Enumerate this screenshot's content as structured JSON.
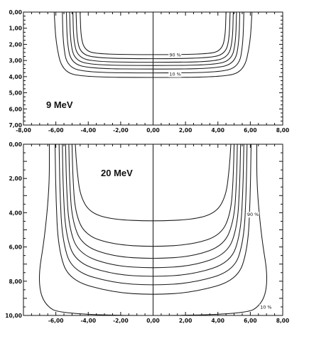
{
  "chart_data": [
    {
      "type": "line",
      "energy_label": "9 MeV",
      "x_ticks": [
        "-8,00",
        "-6,00",
        "-4,00",
        "-2,00",
        "0,00",
        "2,00",
        "4,00",
        "6,00",
        "8,00"
      ],
      "y_ticks": [
        "0,00",
        "1,00",
        "2,00",
        "3,00",
        "4,00",
        "5,00",
        "6,00",
        "7,00"
      ],
      "xlim": [
        -8,
        8
      ],
      "ylim": [
        0,
        7
      ],
      "y_inverted": true,
      "isodose_labels": [
        {
          "text": "90 %",
          "x": 1.0,
          "y": 2.75
        },
        {
          "text": "10 %",
          "x": 1.0,
          "y": 3.95
        }
      ],
      "series": [
        {
          "level": "90",
          "points": [
            [
              -4.5,
              0
            ],
            [
              -4.45,
              1.6
            ],
            [
              -4.2,
              2.35
            ],
            [
              -3.5,
              2.6
            ],
            [
              0,
              2.65
            ],
            [
              3.5,
              2.6
            ],
            [
              4.2,
              2.35
            ],
            [
              4.45,
              1.6
            ],
            [
              4.5,
              0
            ]
          ]
        },
        {
          "level": "",
          "points": [
            [
              -4.75,
              0
            ],
            [
              -4.7,
              1.7
            ],
            [
              -4.45,
              2.55
            ],
            [
              -3.6,
              2.85
            ],
            [
              0,
              2.9
            ],
            [
              3.6,
              2.85
            ],
            [
              4.45,
              2.55
            ],
            [
              4.7,
              1.7
            ],
            [
              4.75,
              0
            ]
          ]
        },
        {
          "level": "",
          "points": [
            [
              -4.95,
              0
            ],
            [
              -4.9,
              1.8
            ],
            [
              -4.65,
              2.75
            ],
            [
              -3.7,
              3.08
            ],
            [
              0,
              3.12
            ],
            [
              3.7,
              3.08
            ],
            [
              4.65,
              2.75
            ],
            [
              4.9,
              1.8
            ],
            [
              4.95,
              0
            ]
          ]
        },
        {
          "level": "",
          "points": [
            [
              -5.15,
              0
            ],
            [
              -5.1,
              1.85
            ],
            [
              -4.85,
              2.95
            ],
            [
              -3.8,
              3.28
            ],
            [
              0,
              3.32
            ],
            [
              3.8,
              3.28
            ],
            [
              4.85,
              2.95
            ],
            [
              5.1,
              1.85
            ],
            [
              5.15,
              0
            ]
          ]
        },
        {
          "level": "",
          "points": [
            [
              -5.35,
              0
            ],
            [
              -5.3,
              1.9
            ],
            [
              -5.05,
              3.15
            ],
            [
              -3.9,
              3.5
            ],
            [
              0,
              3.54
            ],
            [
              3.9,
              3.5
            ],
            [
              5.05,
              3.15
            ],
            [
              5.3,
              1.9
            ],
            [
              5.35,
              0
            ]
          ]
        },
        {
          "level": "",
          "points": [
            [
              -5.6,
              0
            ],
            [
              -5.55,
              1.95
            ],
            [
              -5.3,
              3.4
            ],
            [
              -4.0,
              3.74
            ],
            [
              0,
              3.78
            ],
            [
              4.0,
              3.74
            ],
            [
              5.3,
              3.4
            ],
            [
              5.55,
              1.95
            ],
            [
              5.6,
              0
            ]
          ]
        },
        {
          "level": "10",
          "points": [
            [
              -6.1,
              0
            ],
            [
              -6.0,
              1.9
            ],
            [
              -5.6,
              3.7
            ],
            [
              -4.2,
              4.02
            ],
            [
              0,
              4.06
            ],
            [
              4.2,
              4.02
            ],
            [
              5.6,
              3.7
            ],
            [
              6.0,
              1.9
            ],
            [
              6.1,
              0
            ]
          ]
        }
      ]
    },
    {
      "type": "line",
      "energy_label": "20 MeV",
      "x_ticks": [
        "-6,00",
        "-4,00",
        "-2,00",
        "0,00",
        "2,00",
        "4,00",
        "6,00",
        "8,00"
      ],
      "y_ticks": [
        "0,00",
        "2,00",
        "4,00",
        "6,00",
        "8,00",
        "10,00"
      ],
      "xlim": [
        -8,
        8
      ],
      "ylim": [
        0,
        10
      ],
      "y_inverted": true,
      "isodose_labels": [
        {
          "text": "90 %",
          "x": 5.8,
          "y": 4.2
        },
        {
          "text": "10 %",
          "x": 6.6,
          "y": 9.6
        }
      ],
      "series": [
        {
          "level": "90",
          "points": [
            [
              -4.8,
              0
            ],
            [
              -4.7,
              1.5
            ],
            [
              -4.5,
              3.0
            ],
            [
              -3.9,
              4.0
            ],
            [
              -2.5,
              4.4
            ],
            [
              0,
              4.5
            ],
            [
              2.5,
              4.4
            ],
            [
              3.9,
              4.0
            ],
            [
              4.5,
              3.0
            ],
            [
              4.7,
              1.5
            ],
            [
              4.8,
              0
            ]
          ]
        },
        {
          "level": "",
          "points": [
            [
              -5.0,
              0
            ],
            [
              -4.95,
              2.0
            ],
            [
              -4.8,
              4.0
            ],
            [
              -4.2,
              5.3
            ],
            [
              -2.5,
              5.85
            ],
            [
              0,
              6.0
            ],
            [
              2.5,
              5.85
            ],
            [
              4.2,
              5.3
            ],
            [
              4.8,
              4.0
            ],
            [
              4.95,
              2.0
            ],
            [
              5.0,
              0
            ]
          ]
        },
        {
          "level": "",
          "points": [
            [
              -5.2,
              0
            ],
            [
              -5.15,
              2.2
            ],
            [
              -5.0,
              4.4
            ],
            [
              -4.4,
              5.9
            ],
            [
              -2.5,
              6.55
            ],
            [
              0,
              6.7
            ],
            [
              2.5,
              6.55
            ],
            [
              4.4,
              5.9
            ],
            [
              5.0,
              4.4
            ],
            [
              5.15,
              2.2
            ],
            [
              5.2,
              0
            ]
          ]
        },
        {
          "level": "",
          "points": [
            [
              -5.4,
              0
            ],
            [
              -5.35,
              2.4
            ],
            [
              -5.2,
              4.8
            ],
            [
              -4.6,
              6.4
            ],
            [
              -2.5,
              7.1
            ],
            [
              0,
              7.25
            ],
            [
              2.5,
              7.1
            ],
            [
              4.6,
              6.4
            ],
            [
              5.2,
              4.8
            ],
            [
              5.35,
              2.4
            ],
            [
              5.4,
              0
            ]
          ]
        },
        {
          "level": "",
          "points": [
            [
              -5.6,
              0
            ],
            [
              -5.55,
              2.6
            ],
            [
              -5.4,
              5.2
            ],
            [
              -4.8,
              6.9
            ],
            [
              -2.5,
              7.6
            ],
            [
              0,
              7.75
            ],
            [
              2.5,
              7.6
            ],
            [
              4.8,
              6.9
            ],
            [
              5.4,
              5.2
            ],
            [
              5.55,
              2.6
            ],
            [
              5.6,
              0
            ]
          ]
        },
        {
          "level": "",
          "points": [
            [
              -5.8,
              0
            ],
            [
              -5.75,
              2.8
            ],
            [
              -5.6,
              5.6
            ],
            [
              -5.0,
              7.4
            ],
            [
              -2.5,
              8.1
            ],
            [
              0,
              8.25
            ],
            [
              2.5,
              8.1
            ],
            [
              5.0,
              7.4
            ],
            [
              5.6,
              5.6
            ],
            [
              5.75,
              2.8
            ],
            [
              5.8,
              0
            ]
          ]
        },
        {
          "level": "",
          "points": [
            [
              -6.05,
              0
            ],
            [
              -6.0,
              3.0
            ],
            [
              -5.85,
              6.1
            ],
            [
              -5.2,
              7.95
            ],
            [
              -2.5,
              8.65
            ],
            [
              0,
              8.8
            ],
            [
              2.5,
              8.65
            ],
            [
              5.2,
              7.95
            ],
            [
              5.85,
              6.1
            ],
            [
              6.0,
              3.0
            ],
            [
              6.05,
              0
            ]
          ]
        },
        {
          "level": "10",
          "points": [
            [
              -6.4,
              0
            ],
            [
              -6.4,
              2.5
            ],
            [
              -6.7,
              5.5
            ],
            [
              -7.1,
              7.8
            ],
            [
              -6.8,
              9.3
            ],
            [
              -5.6,
              10.0
            ],
            [
              5.6,
              10.0
            ],
            [
              6.8,
              9.3
            ],
            [
              7.1,
              7.8
            ],
            [
              6.7,
              5.5
            ],
            [
              6.4,
              2.5
            ],
            [
              6.4,
              0
            ]
          ]
        }
      ]
    }
  ]
}
